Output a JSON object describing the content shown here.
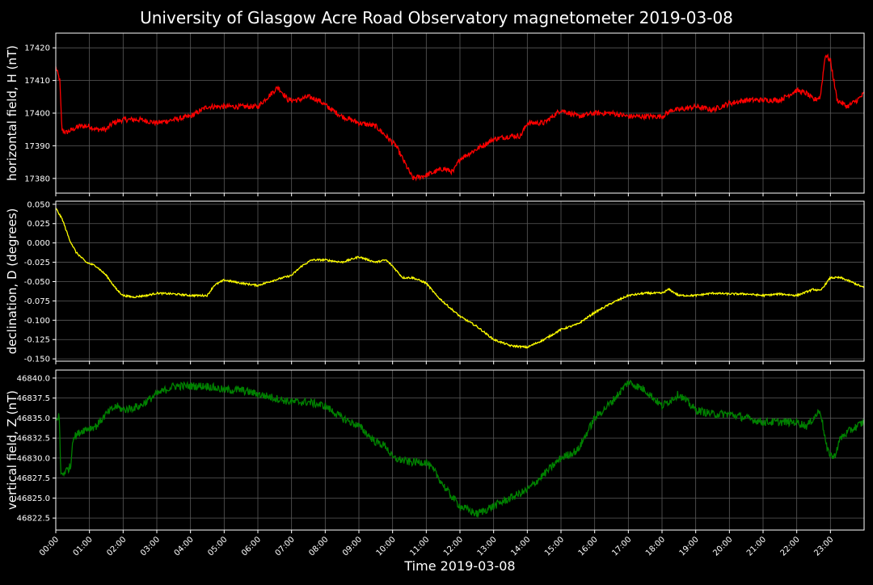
{
  "colors": {
    "background": "#000000",
    "text": "#ffffff",
    "grid": "#5a5a5a"
  },
  "chart_data": {
    "type": "line",
    "title": "University of Glasgow Acre Road Observatory magnetometer 2019-03-08",
    "xlabel": "Time 2019-03-08",
    "xlim": [
      "00:00",
      "24:00"
    ],
    "x_ticks": [
      "00:00",
      "01:00",
      "02:00",
      "03:00",
      "04:00",
      "05:00",
      "06:00",
      "07:00",
      "08:00",
      "09:00",
      "10:00",
      "11:00",
      "12:00",
      "13:00",
      "14:00",
      "15:00",
      "16:00",
      "17:00",
      "18:00",
      "19:00",
      "20:00",
      "21:00",
      "22:00",
      "23:00"
    ],
    "grid": true,
    "panels": [
      {
        "ylabel": "horizontal field, H (nT)",
        "color": "#ff0000",
        "ylim": [
          17375.5,
          17424.5
        ],
        "yticks": [
          "17380",
          "17390",
          "17400",
          "17410",
          "17420"
        ],
        "ytick_values": [
          17380,
          17390,
          17400,
          17410,
          17420
        ],
        "noise": 0.8,
        "x_hours": [
          0.0,
          0.12,
          0.18,
          0.3,
          0.5,
          0.7,
          1.0,
          1.2,
          1.5,
          1.7,
          2.0,
          2.5,
          3.0,
          3.5,
          4.0,
          4.5,
          5.0,
          5.5,
          6.0,
          6.3,
          6.6,
          6.9,
          7.2,
          7.5,
          7.8,
          8.2,
          8.5,
          9.0,
          9.5,
          9.8,
          10.1,
          10.4,
          10.6,
          11.0,
          11.5,
          11.8,
          12.0,
          12.5,
          13.0,
          13.5,
          13.8,
          14.0,
          14.5,
          15.0,
          15.5,
          16.0,
          16.5,
          17.0,
          17.5,
          18.0,
          18.3,
          18.5,
          19.0,
          19.5,
          20.0,
          20.5,
          21.0,
          21.5,
          22.0,
          22.3,
          22.5,
          22.7,
          22.85,
          23.0,
          23.2,
          23.5,
          23.8,
          24.0
        ],
        "values": [
          17414,
          17410,
          17395,
          17394,
          17395,
          17396,
          17396,
          17395,
          17395,
          17397,
          17398,
          17398,
          17397,
          17398,
          17399,
          17402,
          17402,
          17402,
          17402,
          17405,
          17408,
          17404,
          17404,
          17405,
          17404,
          17401,
          17399,
          17397,
          17396,
          17393,
          17390,
          17384,
          17380,
          17381,
          17383,
          17382,
          17386,
          17389,
          17392,
          17393,
          17393,
          17397,
          17397,
          17401,
          17399,
          17400,
          17400,
          17399,
          17399,
          17399,
          17401,
          17401,
          17402,
          17401,
          17403,
          17404,
          17404,
          17404,
          17407,
          17406,
          17404,
          17405,
          17418,
          17416,
          17404,
          17402,
          17404,
          17406
        ]
      },
      {
        "ylabel": "declination, D (degrees)",
        "color": "#ffff00",
        "ylim": [
          -0.153,
          0.054
        ],
        "yticks": [
          "-0.150",
          "-0.125",
          "-0.100",
          "-0.075",
          "-0.050",
          "-0.025",
          "0.000",
          "0.025",
          "0.050"
        ],
        "ytick_values": [
          -0.15,
          -0.125,
          -0.1,
          -0.075,
          -0.05,
          -0.025,
          0.0,
          0.025,
          0.05
        ],
        "noise": 0.0012,
        "x_hours": [
          0.0,
          0.2,
          0.4,
          0.6,
          0.9,
          1.2,
          1.5,
          1.8,
          2.0,
          2.3,
          2.7,
          3.0,
          3.5,
          4.0,
          4.5,
          4.7,
          5.0,
          5.5,
          6.0,
          6.5,
          7.0,
          7.3,
          7.6,
          8.0,
          8.5,
          9.0,
          9.5,
          9.8,
          10.0,
          10.3,
          10.6,
          11.0,
          11.3,
          11.6,
          12.0,
          12.5,
          13.0,
          13.5,
          14.0,
          14.5,
          15.0,
          15.5,
          16.0,
          16.5,
          17.0,
          17.5,
          18.0,
          18.2,
          18.5,
          19.0,
          19.5,
          20.0,
          20.5,
          21.0,
          21.5,
          22.0,
          22.5,
          22.7,
          23.0,
          23.3,
          23.6,
          24.0
        ],
        "values": [
          0.045,
          0.03,
          0.005,
          -0.012,
          -0.025,
          -0.03,
          -0.042,
          -0.06,
          -0.068,
          -0.07,
          -0.068,
          -0.065,
          -0.066,
          -0.068,
          -0.068,
          -0.055,
          -0.048,
          -0.052,
          -0.055,
          -0.048,
          -0.042,
          -0.03,
          -0.022,
          -0.022,
          -0.025,
          -0.018,
          -0.025,
          -0.022,
          -0.03,
          -0.045,
          -0.045,
          -0.052,
          -0.068,
          -0.08,
          -0.095,
          -0.108,
          -0.125,
          -0.133,
          -0.135,
          -0.125,
          -0.112,
          -0.105,
          -0.09,
          -0.078,
          -0.068,
          -0.065,
          -0.065,
          -0.06,
          -0.068,
          -0.068,
          -0.065,
          -0.066,
          -0.066,
          -0.068,
          -0.066,
          -0.068,
          -0.06,
          -0.062,
          -0.045,
          -0.045,
          -0.05,
          -0.058
        ]
      },
      {
        "ylabel": "vertical field, Z (nT)",
        "color": "#008000",
        "ylim": [
          46821.0,
          46841.0
        ],
        "yticks": [
          "46822.5",
          "46825.0",
          "46827.5",
          "46830.0",
          "46832.5",
          "46835.0",
          "46837.5",
          "46840.0"
        ],
        "ytick_values": [
          46822.5,
          46825.0,
          46827.5,
          46830.0,
          46832.5,
          46835.0,
          46837.5,
          46840.0
        ],
        "noise": 0.5,
        "x_hours": [
          0.0,
          0.1,
          0.15,
          0.2,
          0.45,
          0.5,
          0.8,
          1.2,
          1.5,
          1.8,
          2.0,
          2.5,
          3.0,
          3.5,
          4.0,
          4.5,
          5.0,
          5.5,
          6.0,
          6.5,
          7.0,
          7.5,
          8.0,
          8.5,
          9.0,
          9.5,
          9.8,
          10.0,
          10.5,
          11.0,
          11.3,
          11.6,
          12.0,
          12.5,
          13.0,
          13.5,
          14.0,
          14.5,
          15.0,
          15.5,
          16.0,
          16.5,
          17.0,
          17.5,
          18.0,
          18.5,
          19.0,
          19.5,
          20.0,
          20.5,
          21.0,
          21.5,
          22.0,
          22.3,
          22.5,
          22.7,
          22.9,
          23.1,
          23.3,
          23.6,
          24.0
        ],
        "values": [
          46834.5,
          46835.5,
          46828,
          46828,
          46829,
          46832.5,
          46833.5,
          46834,
          46835.5,
          46836.5,
          46836,
          46836.5,
          46838,
          46839,
          46839,
          46839,
          46838.5,
          46838.5,
          46838,
          46837.5,
          46837,
          46837,
          46836.5,
          46835,
          46834,
          46832,
          46831.5,
          46830,
          46829.5,
          46829.5,
          46828,
          46826,
          46824,
          46823,
          46824,
          46825,
          46826,
          46828,
          46830,
          46831,
          46835,
          46837,
          46839.5,
          46838.5,
          46836.5,
          46838,
          46836,
          46835.5,
          46835.5,
          46835,
          46834.5,
          46834.5,
          46834.5,
          46834,
          46835,
          46836,
          46831,
          46830,
          46832.5,
          46833.5,
          46834.5
        ]
      }
    ]
  }
}
